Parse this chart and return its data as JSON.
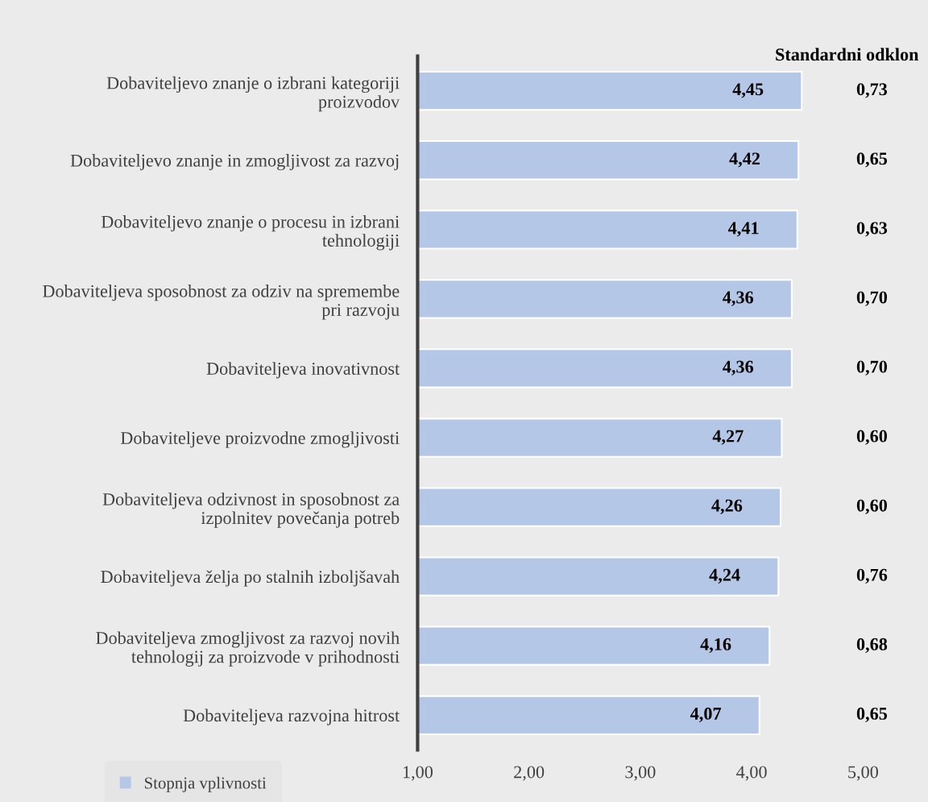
{
  "chart_data": {
    "type": "bar",
    "orientation": "horizontal",
    "categories": [
      "Dobaviteljevo znanje o izbrani kategoriji\nproizvodov",
      "Dobaviteljevo znanje in zmogljivost za razvoj",
      "Dobaviteljevo znanje o procesu in izbrani\ntehnologiji",
      "Dobaviteljeva sposobnost za odziv na spremembe\npri razvoju",
      "Dobaviteljeva inovativnost",
      "Dobaviteljeve proizvodne zmogljivosti",
      "Dobaviteljeva odzivnost in sposobnost za\nizpolnitev povečanja potreb",
      "Dobaviteljeva želja po stalnih izboljšavah",
      "Dobaviteljeva zmogljivost za razvoj novih\ntehnologij za proizvode v prihodnosti",
      "Dobaviteljeva razvojna hitrost"
    ],
    "series": [
      {
        "name": "Stopnja vplivnosti",
        "color": "#b4c7e7",
        "values": [
          4.45,
          4.42,
          4.41,
          4.36,
          4.36,
          4.27,
          4.26,
          4.24,
          4.16,
          4.07
        ],
        "value_labels": [
          "4,45",
          "4,42",
          "4,41",
          "4,36",
          "4,36",
          "4,27",
          "4,26",
          "4,24",
          "4,16",
          "4,07"
        ]
      }
    ],
    "xlim": [
      1,
      5
    ],
    "xticks": [
      {
        "value": 1,
        "label": "1,00"
      },
      {
        "value": 2,
        "label": "2,00"
      },
      {
        "value": 3,
        "label": "3,00"
      },
      {
        "value": 4,
        "label": "4,00"
      },
      {
        "value": 5,
        "label": "5,00"
      }
    ],
    "annotations": [
      "Standardni odklon",
      "0,73",
      "0,65",
      "0,63",
      "0,70",
      "0,70",
      "0,60",
      "0,60",
      "0,76",
      "0,68",
      "0,65"
    ],
    "legend": "bottom left",
    "grid": false
  }
}
